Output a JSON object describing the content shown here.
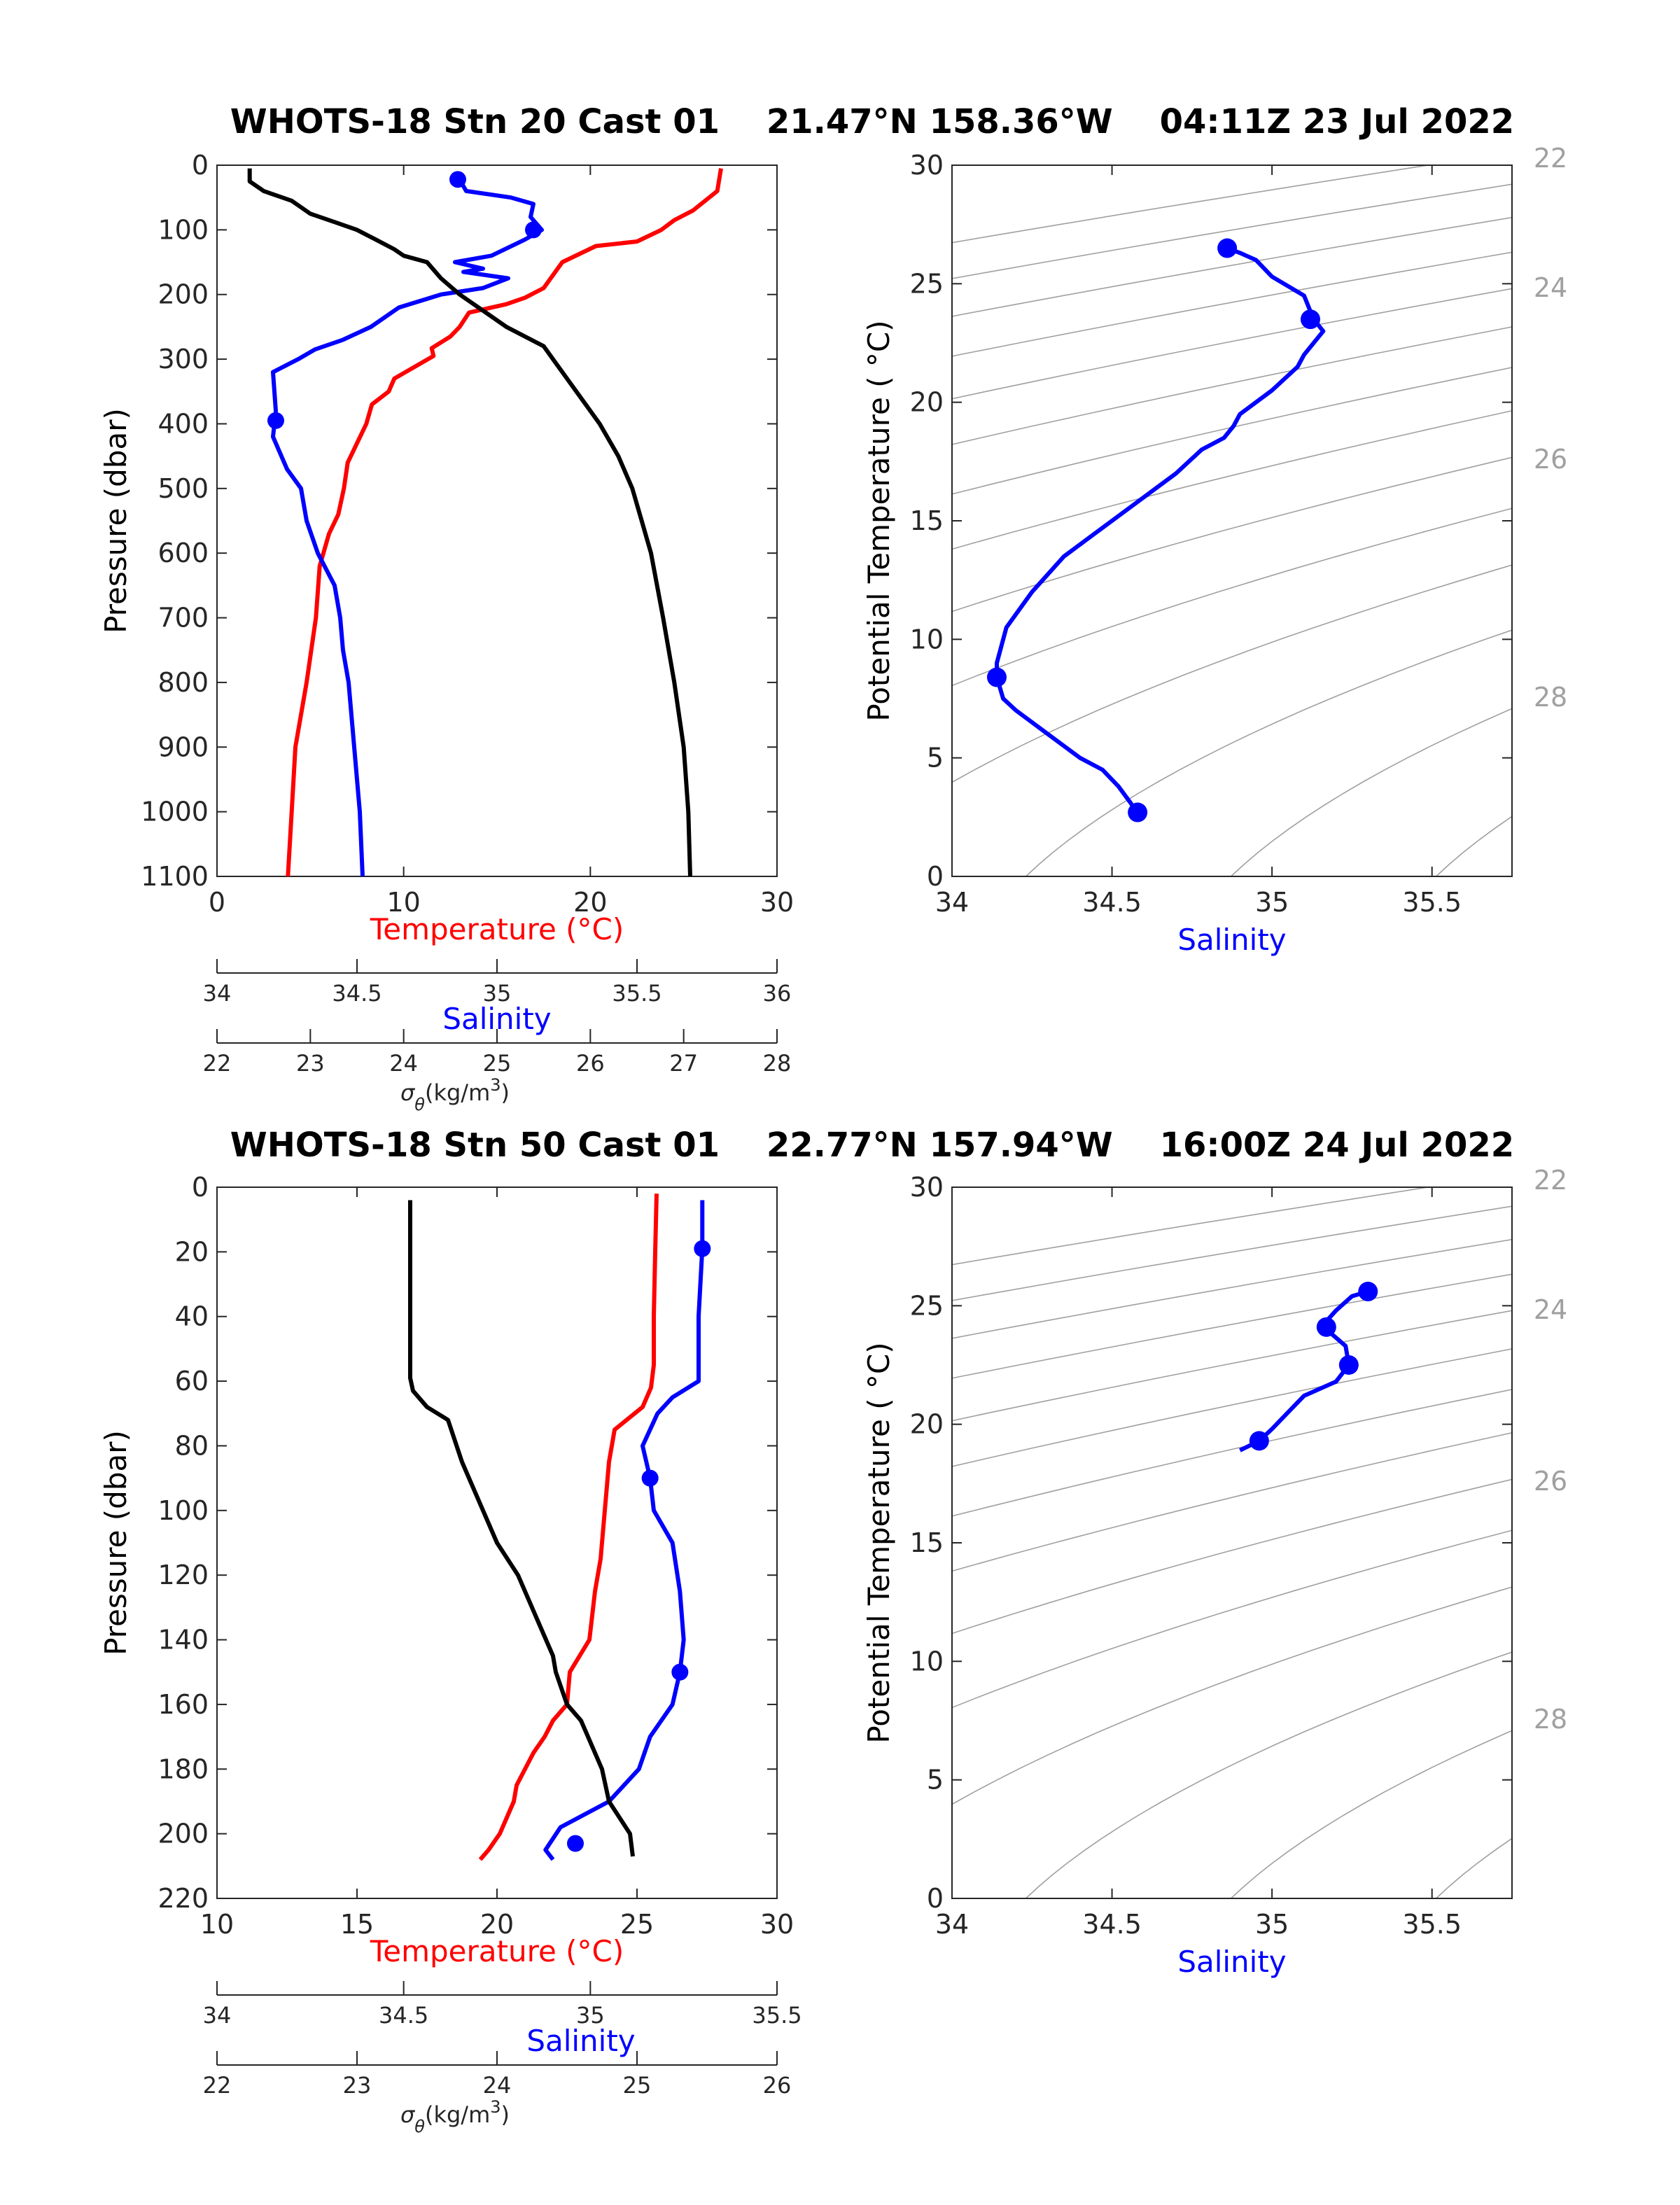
{
  "colors": {
    "temperature": "#ff0000",
    "salinity": "#0000ff",
    "sigma": "#000000",
    "isopycnal": "#a0a0a0",
    "axis": "#262626"
  },
  "chart_data": [
    {
      "type": "line",
      "title": "WHOTS-18 Stn 20 Cast 01    21.47°N 158.36°W    04:11Z 23 Jul 2022",
      "ylabel": "Pressure (dbar)",
      "ylim": [
        0,
        1100
      ],
      "y_reversed": true,
      "yticks": [
        "0",
        "100",
        "200",
        "300",
        "400",
        "500",
        "600",
        "700",
        "800",
        "900",
        "1000",
        "1100"
      ],
      "axes": [
        {
          "label": "Temperature (°C)",
          "color": "#ff0000",
          "range": [
            0,
            30
          ],
          "ticks": [
            "0",
            "10",
            "20",
            "30"
          ]
        },
        {
          "label": "Salinity",
          "color": "#0000ff",
          "range": [
            34,
            36
          ],
          "ticks": [
            "34",
            "34.5",
            "35",
            "35.5",
            "36"
          ]
        },
        {
          "label_prefix": "σ",
          "label_sub": "θ",
          "label_suffix": "(kg/m",
          "label_sup": "3",
          "label_end": ")",
          "color": "#000000",
          "range": [
            22,
            28
          ],
          "ticks": [
            "22",
            "23",
            "24",
            "25",
            "26",
            "27",
            "28"
          ]
        }
      ],
      "series": [
        {
          "name": "Temperature (°C)",
          "axis": 0,
          "color": "#ff0000",
          "points": [
            [
              27.0,
              5
            ],
            [
              26.8,
              40
            ],
            [
              25.5,
              70
            ],
            [
              24.5,
              85
            ],
            [
              23.8,
              100
            ],
            [
              22.5,
              118
            ],
            [
              20.3,
              125
            ],
            [
              18.5,
              150
            ],
            [
              18.0,
              170
            ],
            [
              17.5,
              190
            ],
            [
              16.5,
              205
            ],
            [
              15.5,
              215
            ],
            [
              13.5,
              228
            ],
            [
              13.0,
              250
            ],
            [
              12.5,
              265
            ],
            [
              11.5,
              283
            ],
            [
              11.6,
              295
            ],
            [
              9.5,
              330
            ],
            [
              9.2,
              350
            ],
            [
              8.3,
              370
            ],
            [
              8.0,
              400
            ],
            [
              7.5,
              430
            ],
            [
              7.0,
              460
            ],
            [
              6.8,
              500
            ],
            [
              6.5,
              540
            ],
            [
              6.0,
              570
            ],
            [
              5.5,
              620
            ],
            [
              5.3,
              700
            ],
            [
              4.8,
              800
            ],
            [
              4.2,
              900
            ],
            [
              4.0,
              1000
            ],
            [
              3.8,
              1100
            ]
          ]
        },
        {
          "name": "Salinity",
          "axis": 1,
          "color": "#0000ff",
          "points": [
            [
              34.86,
              15
            ],
            [
              34.87,
              25
            ],
            [
              34.89,
              40
            ],
            [
              35.05,
              50
            ],
            [
              35.13,
              60
            ],
            [
              35.12,
              80
            ],
            [
              35.16,
              100
            ],
            [
              35.1,
              115
            ],
            [
              34.98,
              140
            ],
            [
              34.85,
              150
            ],
            [
              34.95,
              160
            ],
            [
              34.88,
              165
            ],
            [
              35.04,
              175
            ],
            [
              34.95,
              190
            ],
            [
              34.8,
              200
            ],
            [
              34.65,
              220
            ],
            [
              34.55,
              250
            ],
            [
              34.45,
              270
            ],
            [
              34.35,
              285
            ],
            [
              34.29,
              300
            ],
            [
              34.2,
              320
            ],
            [
              34.21,
              380
            ],
            [
              34.2,
              420
            ],
            [
              34.25,
              470
            ],
            [
              34.3,
              500
            ],
            [
              34.32,
              550
            ],
            [
              34.36,
              600
            ],
            [
              34.42,
              650
            ],
            [
              34.44,
              700
            ],
            [
              34.45,
              750
            ],
            [
              34.47,
              800
            ],
            [
              34.49,
              900
            ],
            [
              34.51,
              1000
            ],
            [
              34.52,
              1100
            ]
          ],
          "markers": [
            [
              34.86,
              22
            ],
            [
              35.13,
              100
            ],
            [
              34.21,
              395
            ]
          ]
        },
        {
          "name": "σθ",
          "axis": 2,
          "color": "#000000",
          "points": [
            [
              22.35,
              5
            ],
            [
              22.35,
              25
            ],
            [
              22.5,
              40
            ],
            [
              22.8,
              55
            ],
            [
              23.0,
              75
            ],
            [
              23.3,
              90
            ],
            [
              23.5,
              100
            ],
            [
              23.7,
              115
            ],
            [
              23.9,
              130
            ],
            [
              24.0,
              140
            ],
            [
              24.25,
              150
            ],
            [
              24.4,
              175
            ],
            [
              24.6,
              200
            ],
            [
              24.9,
              230
            ],
            [
              25.1,
              250
            ],
            [
              25.5,
              280
            ],
            [
              25.6,
              300
            ],
            [
              25.85,
              350
            ],
            [
              26.1,
              400
            ],
            [
              26.3,
              450
            ],
            [
              26.45,
              500
            ],
            [
              26.55,
              550
            ],
            [
              26.65,
              600
            ],
            [
              26.78,
              700
            ],
            [
              26.9,
              800
            ],
            [
              27.0,
              900
            ],
            [
              27.05,
              1000
            ],
            [
              27.07,
              1100
            ]
          ]
        }
      ]
    },
    {
      "type": "line",
      "subtype": "TS-diagram",
      "xlabel": "Salinity",
      "ylabel": "Potential Temperature ( °C)",
      "xlim": [
        34,
        35.75
      ],
      "ylim": [
        0,
        30
      ],
      "xticks": [
        "34",
        "34.5",
        "35",
        "35.5"
      ],
      "yticks": [
        "0",
        "5",
        "10",
        "15",
        "20",
        "25",
        "30"
      ],
      "isopycnal_labels": [
        "22",
        "24",
        "26",
        "28"
      ],
      "series": [
        {
          "name": "Salinity",
          "color": "#0000ff",
          "points": [
            [
              34.86,
              26.5
            ],
            [
              34.9,
              26.3
            ],
            [
              34.95,
              26.0
            ],
            [
              35.0,
              25.3
            ],
            [
              35.1,
              24.5
            ],
            [
              35.13,
              23.5
            ],
            [
              35.16,
              23.0
            ],
            [
              35.1,
              22.0
            ],
            [
              35.08,
              21.5
            ],
            [
              35.0,
              20.5
            ],
            [
              34.9,
              19.5
            ],
            [
              34.88,
              19.0
            ],
            [
              34.85,
              18.5
            ],
            [
              34.78,
              18.0
            ],
            [
              34.7,
              17.0
            ],
            [
              34.6,
              16.0
            ],
            [
              34.45,
              14.5
            ],
            [
              34.35,
              13.5
            ],
            [
              34.25,
              12.0
            ],
            [
              34.17,
              10.5
            ],
            [
              34.14,
              9.0
            ],
            [
              34.14,
              8.4
            ],
            [
              34.16,
              7.5
            ],
            [
              34.2,
              7.0
            ],
            [
              34.3,
              6.0
            ],
            [
              34.4,
              5.0
            ],
            [
              34.47,
              4.5
            ],
            [
              34.52,
              3.8
            ],
            [
              34.58,
              2.7
            ]
          ],
          "markers": [
            [
              34.86,
              26.5
            ],
            [
              35.12,
              23.5
            ],
            [
              34.14,
              8.4
            ],
            [
              34.58,
              2.7
            ]
          ]
        }
      ]
    },
    {
      "type": "line",
      "title": "WHOTS-18 Stn 50 Cast 01    22.77°N 157.94°W    16:00Z 24 Jul 2022",
      "ylabel": "Pressure (dbar)",
      "ylim": [
        0,
        220
      ],
      "y_reversed": true,
      "yticks": [
        "0",
        "20",
        "40",
        "60",
        "80",
        "100",
        "120",
        "140",
        "160",
        "180",
        "200",
        "220"
      ],
      "axes": [
        {
          "label": "Temperature (°C)",
          "color": "#ff0000",
          "range": [
            10,
            30
          ],
          "ticks": [
            "10",
            "15",
            "20",
            "25",
            "30"
          ]
        },
        {
          "label": "Salinity",
          "color": "#0000ff",
          "range": [
            34,
            35.5
          ],
          "ticks": [
            "34",
            "34.5",
            "35",
            "35.5"
          ]
        },
        {
          "label_prefix": "σ",
          "label_sub": "θ",
          "label_suffix": "(kg/m",
          "label_sup": "3",
          "label_end": ")",
          "color": "#000000",
          "range": [
            22,
            26
          ],
          "ticks": [
            "22",
            "23",
            "24",
            "25",
            "26"
          ]
        }
      ],
      "series": [
        {
          "name": "Temperature (°C)",
          "axis": 0,
          "color": "#ff0000",
          "points": [
            [
              25.7,
              2
            ],
            [
              25.65,
              20
            ],
            [
              25.6,
              40
            ],
            [
              25.6,
              55
            ],
            [
              25.5,
              62
            ],
            [
              25.2,
              68
            ],
            [
              24.2,
              75
            ],
            [
              24.0,
              85
            ],
            [
              23.9,
              95
            ],
            [
              23.8,
              105
            ],
            [
              23.7,
              115
            ],
            [
              23.5,
              125
            ],
            [
              23.3,
              140
            ],
            [
              22.6,
              150
            ],
            [
              22.5,
              160
            ],
            [
              22.0,
              165
            ],
            [
              21.7,
              170
            ],
            [
              21.3,
              175
            ],
            [
              20.7,
              185
            ],
            [
              20.6,
              190
            ],
            [
              20.1,
              200
            ],
            [
              19.7,
              205
            ],
            [
              19.4,
              208
            ]
          ]
        },
        {
          "name": "Salinity",
          "axis": 1,
          "color": "#0000ff",
          "points": [
            [
              35.3,
              4
            ],
            [
              35.3,
              19
            ],
            [
              35.29,
              40
            ],
            [
              35.29,
              60
            ],
            [
              35.22,
              65
            ],
            [
              35.18,
              70
            ],
            [
              35.14,
              80
            ],
            [
              35.16,
              90
            ],
            [
              35.17,
              100
            ],
            [
              35.22,
              110
            ],
            [
              35.24,
              125
            ],
            [
              35.25,
              140
            ],
            [
              35.24,
              150
            ],
            [
              35.22,
              160
            ],
            [
              35.16,
              170
            ],
            [
              35.13,
              180
            ],
            [
              35.05,
              190
            ],
            [
              34.92,
              198
            ],
            [
              34.88,
              205
            ],
            [
              34.9,
              208
            ]
          ],
          "markers": [
            [
              35.3,
              19
            ],
            [
              35.16,
              90
            ],
            [
              35.24,
              150
            ],
            [
              34.96,
              203
            ]
          ]
        },
        {
          "name": "σθ",
          "axis": 2,
          "color": "#000000",
          "points": [
            [
              23.38,
              4
            ],
            [
              23.38,
              30
            ],
            [
              23.38,
              59
            ],
            [
              23.4,
              63
            ],
            [
              23.5,
              68
            ],
            [
              23.65,
              72
            ],
            [
              23.75,
              85
            ],
            [
              23.9,
              100
            ],
            [
              24.0,
              110
            ],
            [
              24.15,
              120
            ],
            [
              24.2,
              125
            ],
            [
              24.3,
              135
            ],
            [
              24.4,
              145
            ],
            [
              24.42,
              150
            ],
            [
              24.5,
              160
            ],
            [
              24.6,
              165
            ],
            [
              24.65,
              170
            ],
            [
              24.75,
              180
            ],
            [
              24.8,
              190
            ],
            [
              24.95,
              200
            ],
            [
              24.97,
              207
            ]
          ]
        }
      ]
    },
    {
      "type": "line",
      "subtype": "TS-diagram",
      "xlabel": "Salinity",
      "ylabel": "Potential Temperature ( °C)",
      "xlim": [
        34,
        35.75
      ],
      "ylim": [
        0,
        30
      ],
      "xticks": [
        "34",
        "34.5",
        "35",
        "35.5"
      ],
      "yticks": [
        "0",
        "5",
        "10",
        "15",
        "20",
        "25",
        "30"
      ],
      "isopycnal_labels": [
        "22",
        "24",
        "26",
        "28"
      ],
      "series": [
        {
          "name": "Salinity",
          "color": "#0000ff",
          "points": [
            [
              35.3,
              25.6
            ],
            [
              35.25,
              25.4
            ],
            [
              35.2,
              24.8
            ],
            [
              35.16,
              24.2
            ],
            [
              35.17,
              24.0
            ],
            [
              35.23,
              23.3
            ],
            [
              35.24,
              22.5
            ],
            [
              35.2,
              21.8
            ],
            [
              35.1,
              21.2
            ],
            [
              35.05,
              20.5
            ],
            [
              35.0,
              19.8
            ],
            [
              34.96,
              19.3
            ],
            [
              34.9,
              18.9
            ]
          ],
          "markers": [
            [
              35.3,
              25.6
            ],
            [
              35.17,
              24.1
            ],
            [
              35.24,
              22.5
            ],
            [
              34.96,
              19.3
            ]
          ]
        }
      ]
    }
  ]
}
